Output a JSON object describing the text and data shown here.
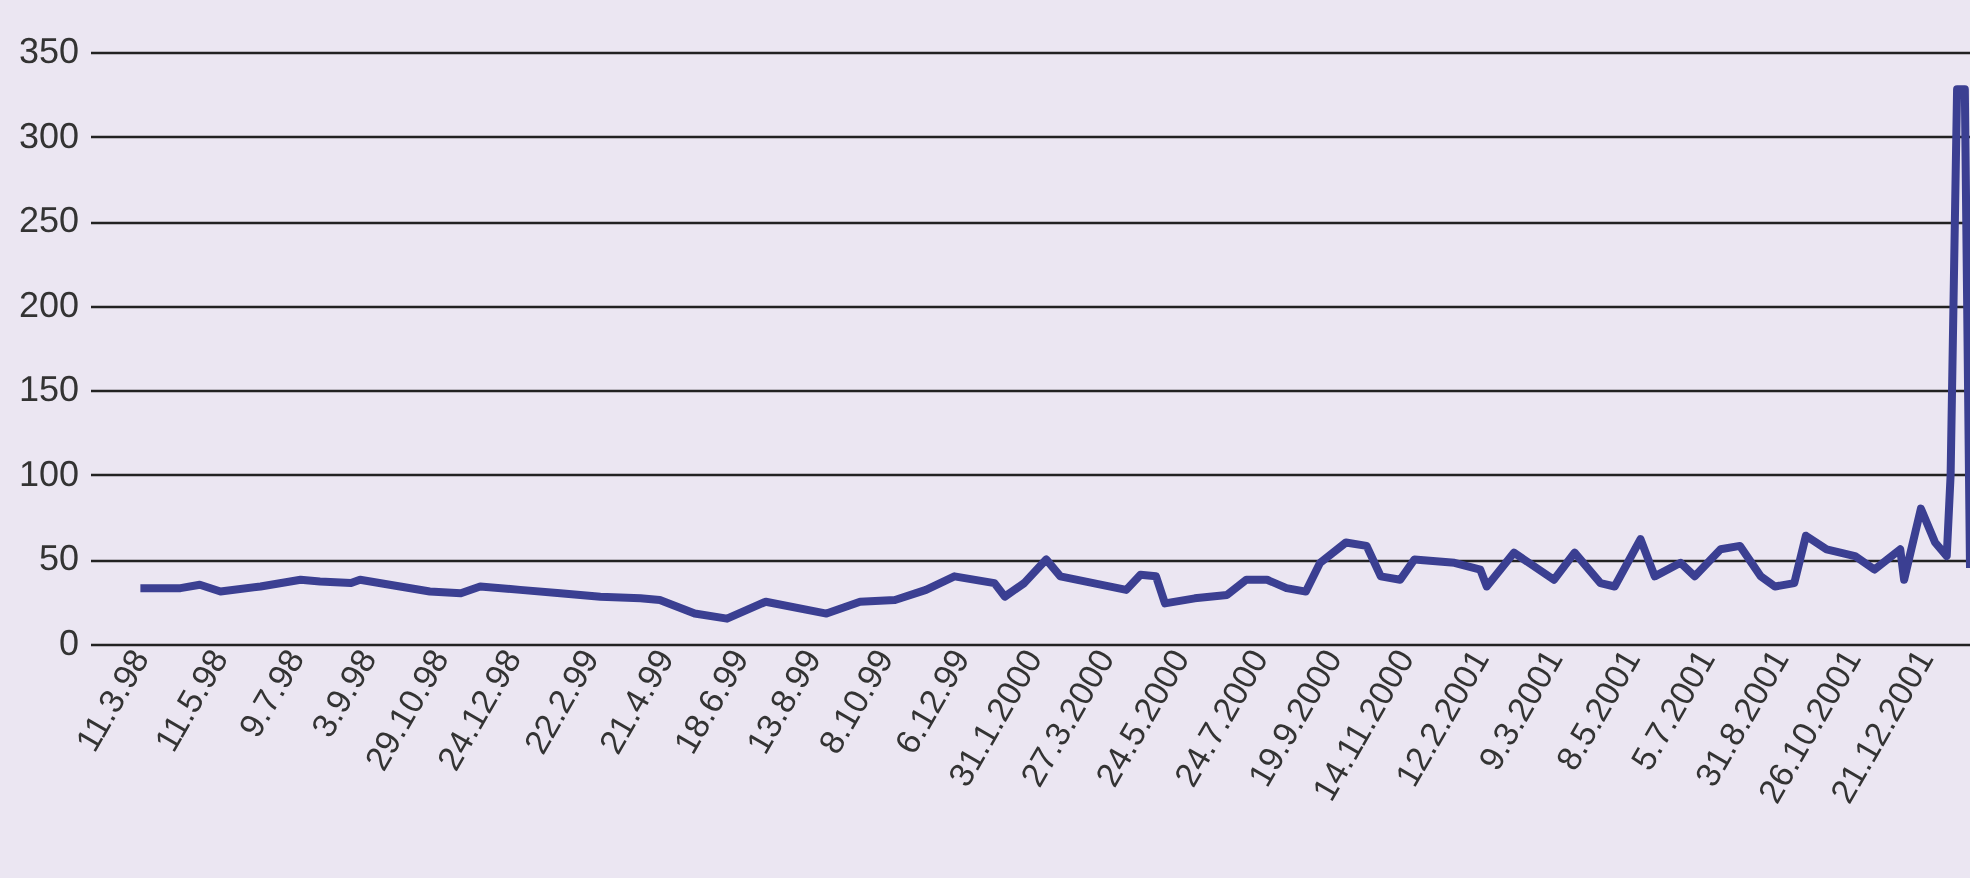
{
  "chart_data": {
    "type": "line",
    "x": [
      "1998-03-11",
      "1998-04-11",
      "1998-04-26",
      "1998-05-12",
      "1998-06-12",
      "1998-07-13",
      "1998-07-28",
      "1998-08-21",
      "1998-08-28",
      "1998-09-28",
      "1998-10-21",
      "1998-11-14",
      "1998-11-29",
      "1998-12-30",
      "1999-01-30",
      "1999-03-02",
      "1999-04-02",
      "1999-04-17",
      "1999-05-14",
      "1999-06-08",
      "1999-07-08",
      "1999-08-24",
      "1999-09-19",
      "1999-10-16",
      "1999-11-09",
      "1999-12-01",
      "2000-01-01",
      "2000-01-09",
      "2000-01-24",
      "2000-02-10",
      "2000-02-21",
      "2000-04-12",
      "2000-04-23",
      "2000-05-05",
      "2000-05-12",
      "2000-06-04",
      "2000-06-29",
      "2000-07-14",
      "2000-07-30",
      "2000-08-14",
      "2000-08-29",
      "2000-09-09",
      "2000-09-29",
      "2000-10-15",
      "2000-10-26",
      "2000-11-10",
      "2000-11-21",
      "2000-12-22",
      "2001-01-11",
      "2001-01-16",
      "2001-02-06",
      "2001-03-09",
      "2001-03-25",
      "2001-04-14",
      "2001-04-25",
      "2001-05-15",
      "2001-05-26",
      "2001-06-15",
      "2001-06-26",
      "2001-07-16",
      "2001-07-31",
      "2001-08-16",
      "2001-08-27",
      "2001-09-11",
      "2001-09-20",
      "2001-10-06",
      "2001-10-28",
      "2001-11-12",
      "2001-12-02",
      "2001-12-05",
      "2001-12-18",
      "2001-12-29",
      "2002-01-07",
      "2002-01-10",
      "2002-01-15",
      "2002-01-21",
      "2002-01-25"
    ],
    "series": [
      {
        "color": "#3b3f92",
        "values": [
          33,
          33,
          35,
          31,
          34,
          38,
          37,
          36,
          38,
          34,
          31,
          30,
          34,
          32,
          30,
          28,
          27,
          26,
          18,
          15,
          25,
          18,
          25,
          26,
          32,
          40,
          36,
          28,
          36,
          50,
          40,
          32,
          41,
          40,
          24,
          27,
          29,
          38,
          38,
          33,
          31,
          48,
          60,
          58,
          40,
          38,
          50,
          48,
          44,
          34,
          54,
          38,
          54,
          36,
          34,
          62,
          40,
          48,
          40,
          56,
          58,
          40,
          34,
          36,
          64,
          56,
          52,
          44,
          56,
          38,
          80,
          60,
          52,
          100,
          328,
          328,
          45
        ]
      }
    ],
    "xlim": [
      "1998-01-31",
      "2002-01-25"
    ],
    "xticks": [
      {
        "value": "1998-03-11",
        "label": "11.3.98"
      },
      {
        "value": "1998-05-11",
        "label": "11.5.98"
      },
      {
        "value": "1998-07-09",
        "label": "9.7.98"
      },
      {
        "value": "1998-09-03",
        "label": "3.9.98"
      },
      {
        "value": "1998-10-29",
        "label": "29.10.98"
      },
      {
        "value": "1998-12-24",
        "label": "24.12.98"
      },
      {
        "value": "1999-02-22",
        "label": "22.2.99"
      },
      {
        "value": "1999-04-21",
        "label": "21.4.99"
      },
      {
        "value": "1999-06-18",
        "label": "18.6.99"
      },
      {
        "value": "1999-08-13",
        "label": "13.8.99"
      },
      {
        "value": "1999-10-08",
        "label": "8.10.99"
      },
      {
        "value": "1999-12-06",
        "label": "6.12.99"
      },
      {
        "value": "2000-01-31",
        "label": "31.1.2000"
      },
      {
        "value": "2000-03-27",
        "label": "27.3.2000"
      },
      {
        "value": "2000-05-24",
        "label": "24.5.2000"
      },
      {
        "value": "2000-07-24",
        "label": "24.7.2000"
      },
      {
        "value": "2000-09-19",
        "label": "19.9.2000"
      },
      {
        "value": "2000-11-14",
        "label": "14.11.2000"
      },
      {
        "value": "2001-01-11",
        "label": "12.2.2001"
      },
      {
        "value": "2001-03-09",
        "label": "9.3.2001"
      },
      {
        "value": "2001-05-08",
        "label": "8.5.2001"
      },
      {
        "value": "2001-07-05",
        "label": "5.7.2001"
      },
      {
        "value": "2001-08-31",
        "label": "31.8.2001"
      },
      {
        "value": "2001-10-26",
        "label": "26.10.2001"
      },
      {
        "value": "2001-12-21",
        "label": "21.12.2001"
      }
    ],
    "ylim": [
      0,
      350
    ],
    "yticks": [
      0,
      50,
      100,
      150,
      200,
      250,
      300,
      350
    ],
    "grid": "y",
    "marker": "none",
    "line_style": "solid"
  }
}
